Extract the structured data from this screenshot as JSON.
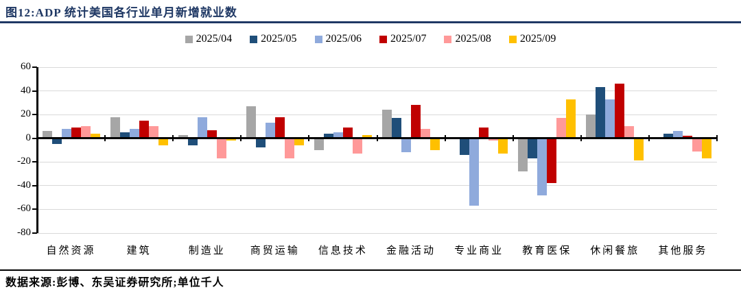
{
  "header": {
    "title": "图12:ADP 统计美国各行业单月新增就业数"
  },
  "footer": {
    "source": "数据来源:彭博、东吴证券研究所;单位千人"
  },
  "colors": {
    "title": "#1f3864",
    "axis": "#000000",
    "grid": "#d9d9d9"
  },
  "chart_data": {
    "type": "bar",
    "title": "ADP 统计美国各行业单月新增就业数",
    "unit": "千人",
    "legend_position": "top",
    "grid": true,
    "ylim": [
      -80,
      60
    ],
    "yticks": [
      60,
      40,
      20,
      0,
      -20,
      -40,
      -60,
      -80
    ],
    "categories": [
      "自然资源",
      "建筑",
      "制造业",
      "商贸运输",
      "信息技术",
      "金融活动",
      "专业商业",
      "教育医保",
      "休闲餐旅",
      "其他服务"
    ],
    "series": [
      {
        "name": "2025/04",
        "color": "#a6a6a6",
        "values": [
          6,
          18,
          3,
          27,
          -10,
          24,
          0,
          -28,
          20,
          0
        ]
      },
      {
        "name": "2025/05",
        "color": "#1f4e79",
        "values": [
          -5,
          5,
          -6,
          -8,
          4,
          17,
          -14,
          -17,
          43,
          4
        ]
      },
      {
        "name": "2025/06",
        "color": "#8faadc",
        "values": [
          8,
          8,
          18,
          13,
          5,
          -12,
          -57,
          -48,
          33,
          6
        ]
      },
      {
        "name": "2025/07",
        "color": "#c00000",
        "values": [
          9,
          15,
          7,
          18,
          9,
          28,
          9,
          -38,
          46,
          2
        ]
      },
      {
        "name": "2025/08",
        "color": "#ff9999",
        "values": [
          10,
          10,
          -17,
          -17,
          -13,
          8,
          -2,
          17,
          10,
          -11
        ]
      },
      {
        "name": "2025/09",
        "color": "#ffc000",
        "values": [
          4,
          -6,
          -2,
          -6,
          3,
          -10,
          -13,
          33,
          -19,
          -17
        ]
      }
    ]
  }
}
